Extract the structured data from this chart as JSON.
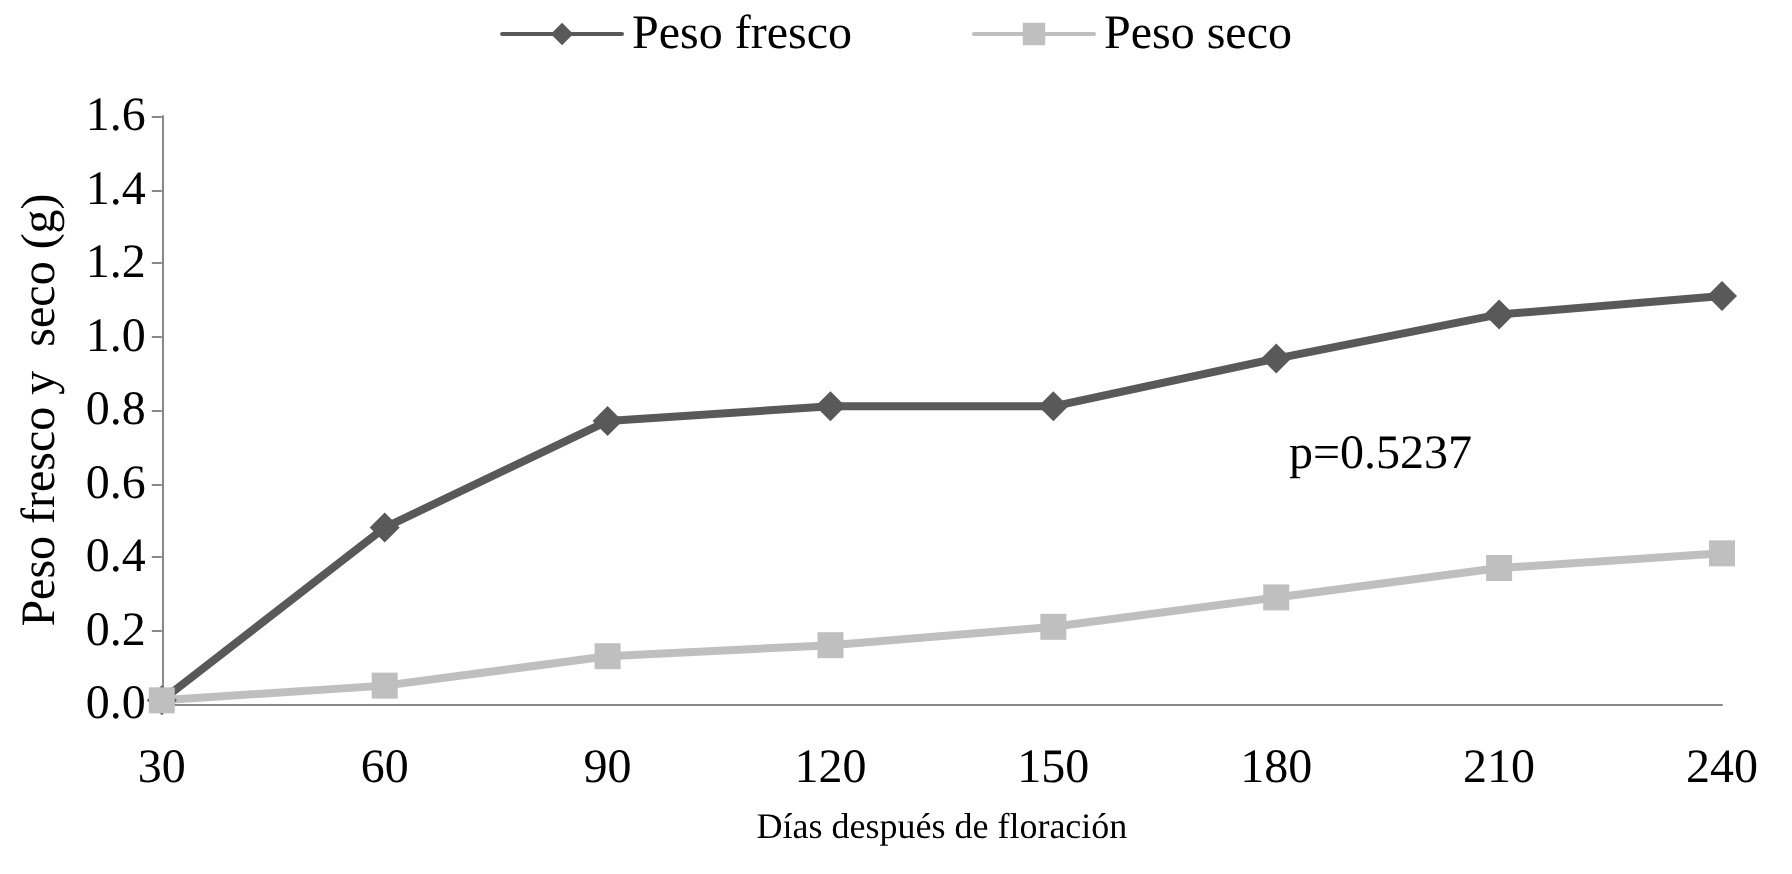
{
  "chart_data": {
    "type": "line",
    "xlabel": "Días después de floración",
    "ylabel": "Peso fresco y  seco (g)",
    "categories": [
      "30",
      "60",
      "90",
      "120",
      "150",
      "180",
      "210",
      "240"
    ],
    "series": [
      {
        "name": "Peso fresco",
        "color": "#595959",
        "marker": "diamond",
        "values": [
          0.01,
          0.48,
          0.77,
          0.81,
          0.81,
          0.94,
          1.06,
          1.11
        ]
      },
      {
        "name": "Peso seco",
        "color": "#bfbfbf",
        "marker": "square",
        "values": [
          0.01,
          0.05,
          0.13,
          0.16,
          0.21,
          0.29,
          0.37,
          0.41
        ]
      }
    ],
    "ylim": [
      0,
      1.6
    ],
    "yticks": [
      {
        "value": 0,
        "label": "0.0"
      },
      0.2,
      0.4,
      0.6,
      0.8,
      {
        "value": 1,
        "label": "1.0"
      },
      1.2,
      1.4,
      1.6
    ],
    "grid": false,
    "legend": "top",
    "line_style": "solid",
    "annotations": [
      "p=0.5237"
    ]
  }
}
